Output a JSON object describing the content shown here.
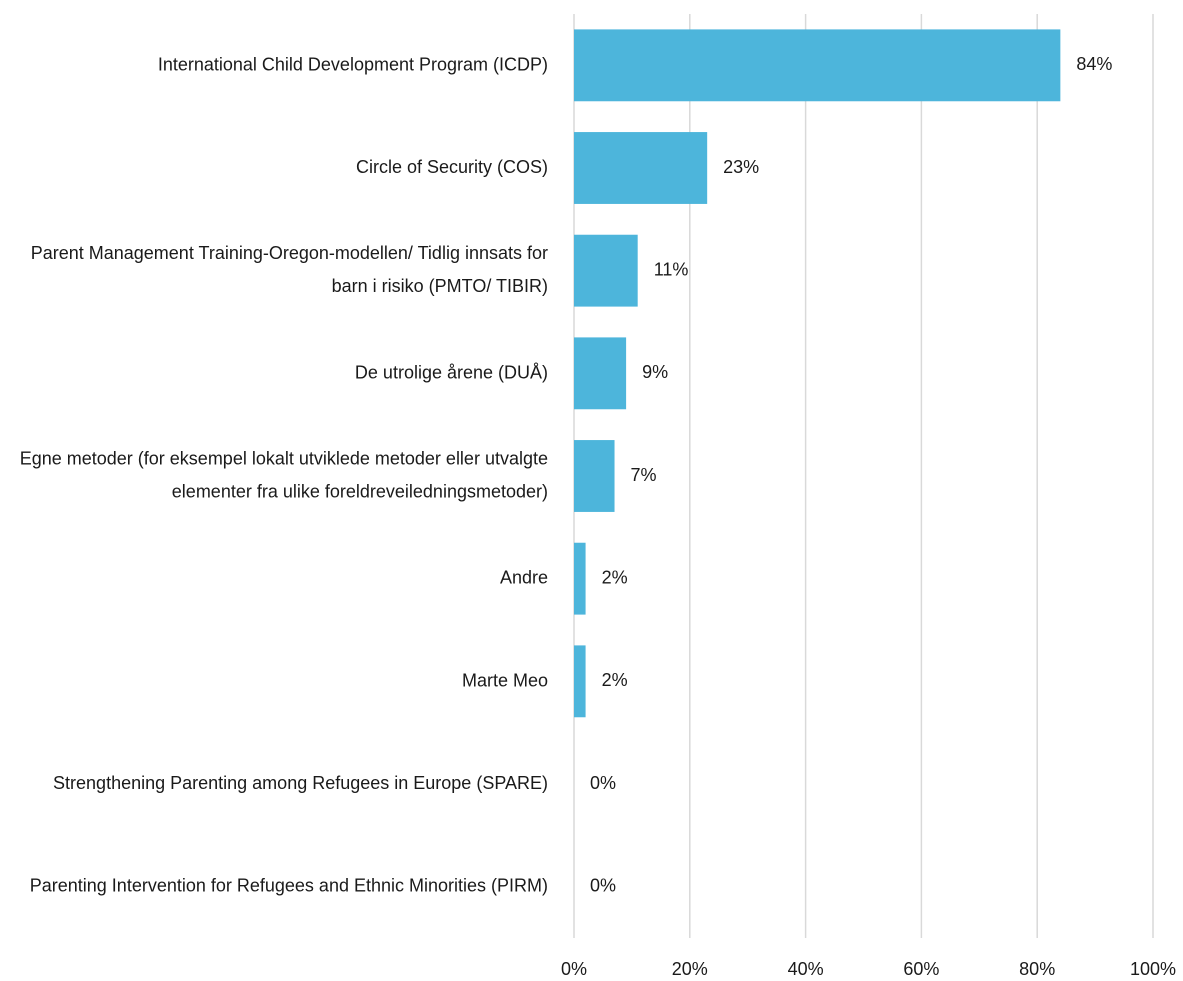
{
  "chart_data": {
    "type": "bar",
    "orientation": "horizontal",
    "categories": [
      "International Child Development Program (ICDP)",
      "Circle of Security (COS)",
      "Parent Management Training-Oregon-modellen/ Tidlig innsats for barn i risiko (PMTO/ TIBIR)",
      "De utrolige årene (DUÅ)",
      "Egne metoder (for eksempel lokalt utviklede metoder eller utvalgte elementer fra ulike foreldreveiledningsmetoder)",
      "Andre",
      "Marte Meo",
      "Strengthening Parenting among Refugees in Europe (SPARE)",
      "Parenting Intervention for Refugees and Ethnic Minorities (PIRM)"
    ],
    "values": [
      84,
      23,
      11,
      9,
      7,
      2,
      2,
      0,
      0
    ],
    "value_labels": [
      "84%",
      "23%",
      "11%",
      "9%",
      "7%",
      "2%",
      "2%",
      "0%",
      "0%"
    ],
    "color": "#4db5db",
    "xlim": [
      0,
      100
    ],
    "xticks": [
      {
        "value": 0,
        "label": "0%"
      },
      {
        "value": 20,
        "label": "20%"
      },
      {
        "value": 40,
        "label": "40%"
      },
      {
        "value": 60,
        "label": "60%"
      },
      {
        "value": 80,
        "label": "80%"
      },
      {
        "value": 100,
        "label": "100%"
      }
    ],
    "grid": true
  }
}
